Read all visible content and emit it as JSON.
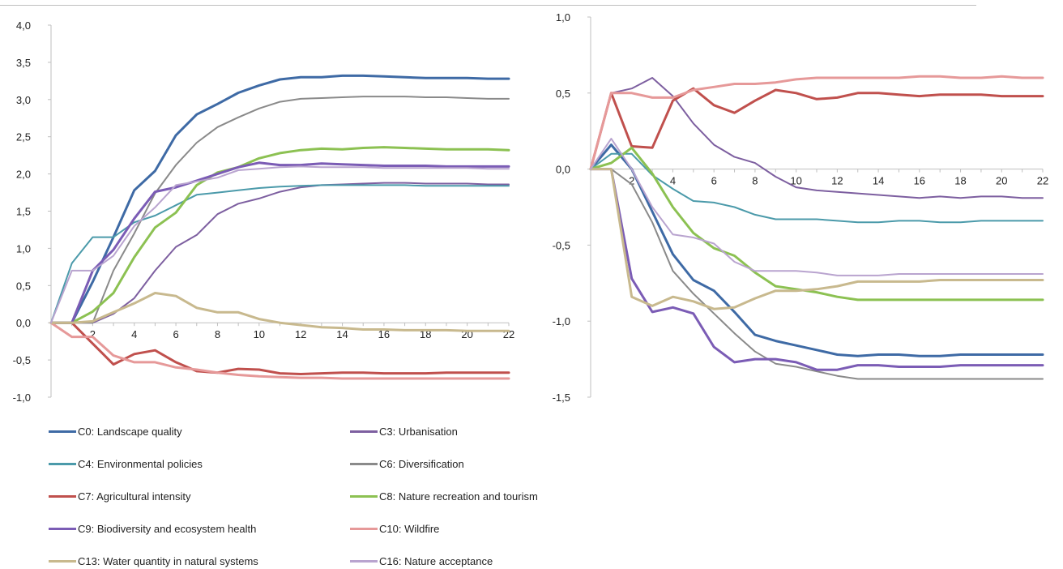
{
  "chart_data": [
    {
      "type": "line",
      "x": [
        1,
        2,
        3,
        4,
        5,
        6,
        7,
        8,
        9,
        10,
        11,
        12,
        13,
        14,
        15,
        16,
        17,
        18,
        19,
        20,
        21,
        22
      ],
      "xticks": [
        "2",
        "4",
        "6",
        "8",
        "10",
        "12",
        "14",
        "16",
        "18",
        "20",
        "22"
      ],
      "yticks": [
        "4,0",
        "3,5",
        "3,0",
        "2,5",
        "2,0",
        "1,5",
        "1,0",
        "0,5",
        "0,0",
        "-0,5",
        "-1,0"
      ],
      "ylim": [
        -1.0,
        4.0
      ],
      "xlim": [
        0,
        22
      ],
      "grid": false,
      "legend": "bottom",
      "series": [
        {
          "name": "C0: Landscape quality",
          "color": "#3e6aa5",
          "width": 3,
          "values": [
            0,
            0.55,
            1.15,
            1.78,
            2.04,
            2.52,
            2.8,
            2.94,
            3.09,
            3.19,
            3.27,
            3.3,
            3.3,
            3.32,
            3.32,
            3.31,
            3.3,
            3.29,
            3.29,
            3.29,
            3.28,
            3.28
          ]
        },
        {
          "name": "C3: Urbanisation",
          "color": "#7d5fa0",
          "width": 2,
          "values": [
            0,
            0,
            0.12,
            0.33,
            0.7,
            1.02,
            1.18,
            1.46,
            1.6,
            1.67,
            1.76,
            1.82,
            1.85,
            1.86,
            1.87,
            1.88,
            1.88,
            1.87,
            1.87,
            1.87,
            1.86,
            1.86
          ]
        },
        {
          "name": "C4: Environmental policies",
          "color": "#4b9aaa",
          "width": 2,
          "values": [
            0.8,
            1.15,
            1.15,
            1.35,
            1.44,
            1.58,
            1.72,
            1.75,
            1.78,
            1.81,
            1.83,
            1.84,
            1.85,
            1.85,
            1.85,
            1.85,
            1.85,
            1.84,
            1.84,
            1.84,
            1.84,
            1.84
          ]
        },
        {
          "name": "C6: Diversification",
          "color": "#8a8a8a",
          "width": 2,
          "values": [
            0,
            0,
            0.7,
            1.2,
            1.74,
            2.12,
            2.42,
            2.63,
            2.76,
            2.88,
            2.97,
            3.01,
            3.02,
            3.03,
            3.04,
            3.04,
            3.04,
            3.03,
            3.03,
            3.02,
            3.01,
            3.01
          ]
        },
        {
          "name": "C7: Agricultural intensity",
          "color": "#c0504d",
          "width": 3,
          "values": [
            0,
            -0.28,
            -0.56,
            -0.42,
            -0.37,
            -0.53,
            -0.65,
            -0.67,
            -0.62,
            -0.63,
            -0.68,
            -0.69,
            -0.68,
            -0.67,
            -0.67,
            -0.68,
            -0.68,
            -0.68,
            -0.67,
            -0.67,
            -0.67,
            -0.67
          ]
        },
        {
          "name": "C8: Nature recreation and tourism",
          "color": "#8cc152",
          "width": 3,
          "values": [
            0,
            0.15,
            0.4,
            0.88,
            1.28,
            1.48,
            1.85,
            2.02,
            2.09,
            2.21,
            2.28,
            2.32,
            2.34,
            2.33,
            2.35,
            2.36,
            2.35,
            2.34,
            2.33,
            2.33,
            2.33,
            2.32
          ]
        },
        {
          "name": "C9: Biodiversity and ecosystem health",
          "color": "#7b5cb5",
          "width": 3,
          "values": [
            0,
            0.7,
            0.98,
            1.4,
            1.76,
            1.82,
            1.91,
            2.0,
            2.09,
            2.15,
            2.12,
            2.12,
            2.14,
            2.13,
            2.12,
            2.11,
            2.11,
            2.11,
            2.1,
            2.1,
            2.1,
            2.1
          ]
        },
        {
          "name": "C10: Wildfire",
          "color": "#e69999",
          "width": 3,
          "values": [
            -0.19,
            -0.19,
            -0.44,
            -0.53,
            -0.53,
            -0.6,
            -0.63,
            -0.67,
            -0.7,
            -0.72,
            -0.73,
            -0.74,
            -0.74,
            -0.75,
            -0.75,
            -0.75,
            -0.75,
            -0.75,
            -0.75,
            -0.75,
            -0.75,
            -0.75
          ]
        },
        {
          "name": "C13: Water quantity in natural systems",
          "color": "#c8b98e",
          "width": 3,
          "values": [
            0,
            0.02,
            0.14,
            0.26,
            0.4,
            0.36,
            0.2,
            0.14,
            0.14,
            0.05,
            0.0,
            -0.03,
            -0.06,
            -0.07,
            -0.09,
            -0.09,
            -0.1,
            -0.1,
            -0.1,
            -0.11,
            -0.11,
            -0.11
          ]
        },
        {
          "name": "C16: Nature acceptance",
          "color": "#b9a4cf",
          "width": 2,
          "values": [
            0.7,
            0.7,
            0.9,
            1.3,
            1.55,
            1.85,
            1.9,
            1.95,
            2.05,
            2.07,
            2.09,
            2.1,
            2.09,
            2.09,
            2.09,
            2.08,
            2.08,
            2.08,
            2.08,
            2.08,
            2.07,
            2.07
          ]
        }
      ]
    },
    {
      "type": "line",
      "x": [
        1,
        2,
        3,
        4,
        5,
        6,
        7,
        8,
        9,
        10,
        11,
        12,
        13,
        14,
        15,
        16,
        17,
        18,
        19,
        20,
        21,
        22
      ],
      "xticks": [
        "2",
        "4",
        "6",
        "8",
        "10",
        "12",
        "14",
        "16",
        "18",
        "20",
        "22"
      ],
      "yticks": [
        "1,0",
        "0,5",
        "0,0",
        "-0,5",
        "-1,0",
        "-1,5"
      ],
      "ylim": [
        -1.5,
        1.0
      ],
      "xlim": [
        0,
        22
      ],
      "grid": false,
      "series": [
        {
          "name": "C0: Landscape quality",
          "color": "#3e6aa5",
          "width": 3,
          "values": [
            0.16,
            0,
            -0.28,
            -0.56,
            -0.73,
            -0.8,
            -0.94,
            -1.09,
            -1.13,
            -1.16,
            -1.19,
            -1.22,
            -1.23,
            -1.22,
            -1.22,
            -1.23,
            -1.23,
            -1.22,
            -1.22,
            -1.22,
            -1.22,
            -1.22
          ]
        },
        {
          "name": "C3: Urbanisation",
          "color": "#7d5fa0",
          "width": 2,
          "values": [
            0.5,
            0.53,
            0.6,
            0.48,
            0.3,
            0.16,
            0.08,
            0.04,
            -0.05,
            -0.12,
            -0.14,
            -0.15,
            -0.16,
            -0.17,
            -0.18,
            -0.19,
            -0.18,
            -0.19,
            -0.18,
            -0.18,
            -0.19,
            -0.19
          ]
        },
        {
          "name": "C4: Environmental policies",
          "color": "#4b9aaa",
          "width": 2,
          "values": [
            0.1,
            0.1,
            -0.04,
            -0.13,
            -0.21,
            -0.22,
            -0.25,
            -0.3,
            -0.33,
            -0.33,
            -0.33,
            -0.34,
            -0.35,
            -0.35,
            -0.34,
            -0.34,
            -0.35,
            -0.35,
            -0.34,
            -0.34,
            -0.34,
            -0.34
          ]
        },
        {
          "name": "C6: Diversification",
          "color": "#8a8a8a",
          "width": 2,
          "values": [
            0,
            -0.1,
            -0.35,
            -0.67,
            -0.82,
            -0.95,
            -1.08,
            -1.2,
            -1.28,
            -1.3,
            -1.33,
            -1.36,
            -1.38,
            -1.38,
            -1.38,
            -1.38,
            -1.38,
            -1.38,
            -1.38,
            -1.38,
            -1.38,
            -1.38
          ]
        },
        {
          "name": "C7: Agricultural intensity",
          "color": "#c0504d",
          "width": 3,
          "values": [
            0.5,
            0.15,
            0.14,
            0.45,
            0.53,
            0.42,
            0.37,
            0.45,
            0.52,
            0.5,
            0.46,
            0.47,
            0.5,
            0.5,
            0.49,
            0.48,
            0.49,
            0.49,
            0.49,
            0.48,
            0.48,
            0.48
          ]
        },
        {
          "name": "C8: Nature recreation and tourism",
          "color": "#8cc152",
          "width": 3,
          "values": [
            0.04,
            0.14,
            -0.03,
            -0.25,
            -0.42,
            -0.52,
            -0.57,
            -0.68,
            -0.77,
            -0.79,
            -0.81,
            -0.84,
            -0.86,
            -0.86,
            -0.86,
            -0.86,
            -0.86,
            -0.86,
            -0.86,
            -0.86,
            -0.86,
            -0.86
          ]
        },
        {
          "name": "C9: Biodiversity and ecosystem health",
          "color": "#7b5cb5",
          "width": 3,
          "values": [
            0,
            -0.72,
            -0.94,
            -0.91,
            -0.95,
            -1.17,
            -1.27,
            -1.25,
            -1.25,
            -1.27,
            -1.32,
            -1.32,
            -1.29,
            -1.29,
            -1.3,
            -1.3,
            -1.3,
            -1.29,
            -1.29,
            -1.29,
            -1.29,
            -1.29
          ]
        },
        {
          "name": "C10: Wildfire",
          "color": "#e69999",
          "width": 3,
          "values": [
            0.5,
            0.5,
            0.47,
            0.47,
            0.52,
            0.54,
            0.56,
            0.56,
            0.57,
            0.59,
            0.6,
            0.6,
            0.6,
            0.6,
            0.6,
            0.61,
            0.61,
            0.6,
            0.6,
            0.61,
            0.6,
            0.6
          ]
        },
        {
          "name": "C13: Water quantity in natural systems",
          "color": "#c8b98e",
          "width": 3,
          "values": [
            0,
            -0.84,
            -0.9,
            -0.84,
            -0.87,
            -0.92,
            -0.91,
            -0.85,
            -0.8,
            -0.8,
            -0.79,
            -0.77,
            -0.74,
            -0.74,
            -0.74,
            -0.74,
            -0.73,
            -0.73,
            -0.73,
            -0.73,
            -0.73,
            -0.73
          ]
        },
        {
          "name": "C16: Nature acceptance",
          "color": "#b9a4cf",
          "width": 2,
          "values": [
            0.2,
            0,
            -0.25,
            -0.43,
            -0.45,
            -0.49,
            -0.61,
            -0.67,
            -0.67,
            -0.67,
            -0.68,
            -0.7,
            -0.7,
            -0.7,
            -0.69,
            -0.69,
            -0.69,
            -0.69,
            -0.69,
            -0.69,
            -0.69,
            -0.69
          ]
        }
      ]
    }
  ]
}
